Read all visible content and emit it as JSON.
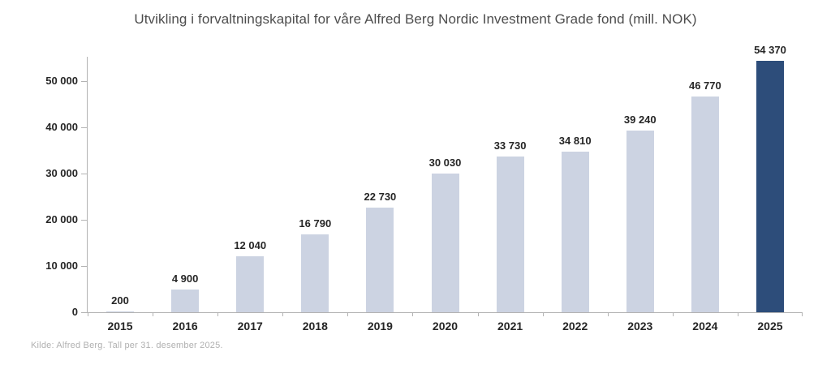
{
  "chart_data": {
    "type": "bar",
    "title": "Utvikling i forvaltningskapital for våre Alfred Berg Nordic Investment Grade fond (mill. NOK)",
    "categories": [
      "2015",
      "2016",
      "2017",
      "2018",
      "2019",
      "2020",
      "2021",
      "2022",
      "2023",
      "2024",
      "2025"
    ],
    "values": [
      200,
      4900,
      12040,
      16790,
      22730,
      30030,
      33730,
      34810,
      39240,
      46770,
      54370
    ],
    "value_labels": [
      "200",
      "4 900",
      "12 040",
      "16 790",
      "22 730",
      "30 030",
      "33 730",
      "34 810",
      "39 240",
      "46 770",
      "54 370"
    ],
    "y_ticks": [
      {
        "value": 0,
        "label": "0"
      },
      {
        "value": 10000,
        "label": "10 000"
      },
      {
        "value": 20000,
        "label": "20 000"
      },
      {
        "value": 30000,
        "label": "30 000"
      },
      {
        "value": 40000,
        "label": "40 000"
      },
      {
        "value": 50000,
        "label": "50 000"
      }
    ],
    "ylim": [
      0,
      55300
    ],
    "xlabel": "",
    "ylabel": "",
    "grid": false,
    "legend": "none",
    "highlight_index": 10,
    "colors": {
      "bar": "#ccd3e2",
      "highlight_bar": "#2d4d7a",
      "axis": "#b3b3b3",
      "tick_text": "#262626",
      "title_text": "#4d4d4d",
      "source_text": "#b0b0b0"
    }
  },
  "footer": {
    "source": "Kilde: Alfred Berg. Tall per 31. desember 2025."
  }
}
